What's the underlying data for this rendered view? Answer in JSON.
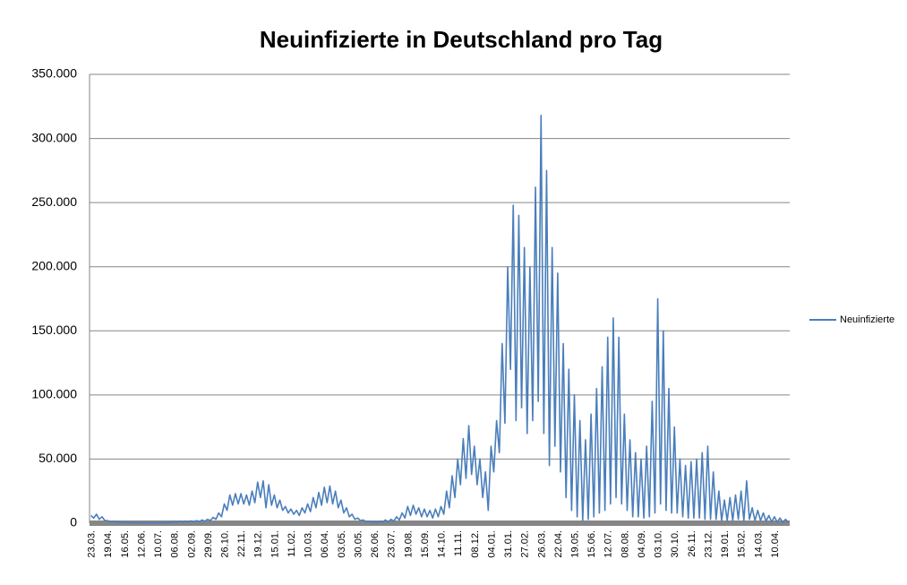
{
  "chart_data": {
    "type": "line",
    "title": "Neuinfizierte in Deutschland pro Tag",
    "categories": [
      "23.03.",
      null,
      null,
      null,
      null,
      null,
      "19.04.",
      null,
      null,
      null,
      null,
      null,
      "16.05.",
      null,
      null,
      null,
      null,
      null,
      "12.06.",
      null,
      null,
      null,
      null,
      null,
      "10.07.",
      null,
      null,
      null,
      null,
      null,
      "06.08.",
      null,
      null,
      null,
      null,
      null,
      "02.09.",
      null,
      null,
      null,
      null,
      null,
      "29.09.",
      null,
      null,
      null,
      null,
      null,
      "26.10.",
      null,
      null,
      null,
      null,
      null,
      "22.11.",
      null,
      null,
      null,
      null,
      null,
      "19.12.",
      null,
      null,
      null,
      null,
      null,
      "15.01.",
      null,
      null,
      null,
      null,
      null,
      "11.02.",
      null,
      null,
      null,
      null,
      null,
      "10.03.",
      null,
      null,
      null,
      null,
      null,
      "06.04.",
      null,
      null,
      null,
      null,
      null,
      "03.05.",
      null,
      null,
      null,
      null,
      null,
      "30.05.",
      null,
      null,
      null,
      null,
      null,
      "26.06.",
      null,
      null,
      null,
      null,
      null,
      "23.07.",
      null,
      null,
      null,
      null,
      null,
      "19.08.",
      null,
      null,
      null,
      null,
      null,
      "15.09.",
      null,
      null,
      null,
      null,
      null,
      "14.10.",
      null,
      null,
      null,
      null,
      null,
      "11.11.",
      null,
      null,
      null,
      null,
      null,
      "08.12.",
      null,
      null,
      null,
      null,
      null,
      "04.01.",
      null,
      null,
      null,
      null,
      null,
      "31.01.",
      null,
      null,
      null,
      null,
      null,
      "27.02.",
      null,
      null,
      null,
      null,
      null,
      "26.03.",
      null,
      null,
      null,
      null,
      null,
      "22.04.",
      null,
      null,
      null,
      null,
      null,
      "19.05.",
      null,
      null,
      null,
      null,
      null,
      "15.06.",
      null,
      null,
      null,
      null,
      null,
      "12.07.",
      null,
      null,
      null,
      null,
      null,
      "08.08.",
      null,
      null,
      null,
      null,
      null,
      "04.09.",
      null,
      null,
      null,
      null,
      null,
      "03.10.",
      null,
      null,
      null,
      null,
      null,
      "30.10.",
      null,
      null,
      null,
      null,
      null,
      "26.11.",
      null,
      null,
      null,
      null,
      null,
      "23.12.",
      null,
      null,
      null,
      null,
      null,
      "19.01.",
      null,
      null,
      null,
      null,
      null,
      "15.02.",
      null,
      null,
      null,
      null,
      null,
      "14.03.",
      null,
      null,
      null,
      null,
      null,
      "10.04.",
      null,
      null,
      null,
      null,
      null
    ],
    "series": [
      {
        "name": "Neuinfizierte",
        "color": "#4a7ebb",
        "values": [
          6000,
          4000,
          7000,
          3000,
          5000,
          2000,
          2000,
          1000,
          1500,
          800,
          1000,
          500,
          800,
          400,
          700,
          300,
          600,
          300,
          600,
          300,
          500,
          300,
          500,
          300,
          500,
          300,
          600,
          400,
          800,
          500,
          1200,
          800,
          1500,
          900,
          1500,
          1000,
          1800,
          1000,
          2000,
          1200,
          2500,
          1500,
          3000,
          2000,
          4500,
          3000,
          8000,
          5000,
          15000,
          10000,
          22000,
          14000,
          23000,
          15000,
          23000,
          15000,
          22000,
          14000,
          25000,
          16000,
          32000,
          20000,
          33000,
          12000,
          30000,
          14000,
          22000,
          12000,
          18000,
          10000,
          13000,
          8000,
          11000,
          7000,
          10000,
          6000,
          12000,
          8000,
          15000,
          9000,
          20000,
          12000,
          24000,
          14000,
          28000,
          16000,
          29000,
          15000,
          25000,
          12000,
          18000,
          8000,
          12000,
          5000,
          7000,
          3000,
          4000,
          2000,
          2500,
          1200,
          1500,
          800,
          1000,
          500,
          1500,
          700,
          2500,
          1000,
          3000,
          1500,
          5000,
          2500,
          8000,
          4000,
          13000,
          6000,
          14000,
          7000,
          12000,
          5000,
          11000,
          5000,
          10000,
          4000,
          11000,
          5000,
          13000,
          7000,
          25000,
          12000,
          37000,
          20000,
          50000,
          30000,
          66000,
          35000,
          76000,
          38000,
          60000,
          30000,
          50000,
          20000,
          40000,
          10000,
          60000,
          40000,
          80000,
          55000,
          140000,
          78000,
          200000,
          120000,
          248000,
          80000,
          240000,
          90000,
          215000,
          70000,
          200000,
          80000,
          262000,
          95000,
          318000,
          70000,
          275000,
          45000,
          215000,
          60000,
          195000,
          40000,
          140000,
          20000,
          120000,
          10000,
          100000,
          5000,
          80000,
          2000,
          65000,
          3000,
          85000,
          5000,
          105000,
          8000,
          122000,
          10000,
          145000,
          15000,
          160000,
          20000,
          145000,
          15000,
          85000,
          10000,
          65000,
          5000,
          55000,
          5000,
          50000,
          4000,
          60000,
          5000,
          95000,
          8000,
          175000,
          15000,
          150000,
          10000,
          105000,
          8000,
          75000,
          8000,
          50000,
          5000,
          45000,
          4000,
          48000,
          4000,
          50000,
          4000,
          55000,
          3000,
          60000,
          3000,
          40000,
          3000,
          25000,
          2000,
          18000,
          2000,
          20000,
          2000,
          22000,
          3000,
          25000,
          2000,
          33000,
          3000,
          12000,
          2000,
          10000,
          2000,
          8000,
          1500,
          6000,
          1000,
          5000,
          800,
          4000,
          600,
          3000,
          500
        ]
      }
    ],
    "ylim": [
      0,
      350000
    ],
    "yticks": [
      0,
      {
        "value": 50000,
        "label": "50.000"
      },
      {
        "value": 100000,
        "label": "100.000"
      },
      {
        "value": 150000,
        "label": "150.000"
      },
      {
        "value": 200000,
        "label": "200.000"
      },
      {
        "value": 250000,
        "label": "250.000"
      },
      {
        "value": 300000,
        "label": "300.000"
      },
      {
        "value": 350000,
        "label": "350.000"
      }
    ],
    "grid": true,
    "legend": "right"
  }
}
